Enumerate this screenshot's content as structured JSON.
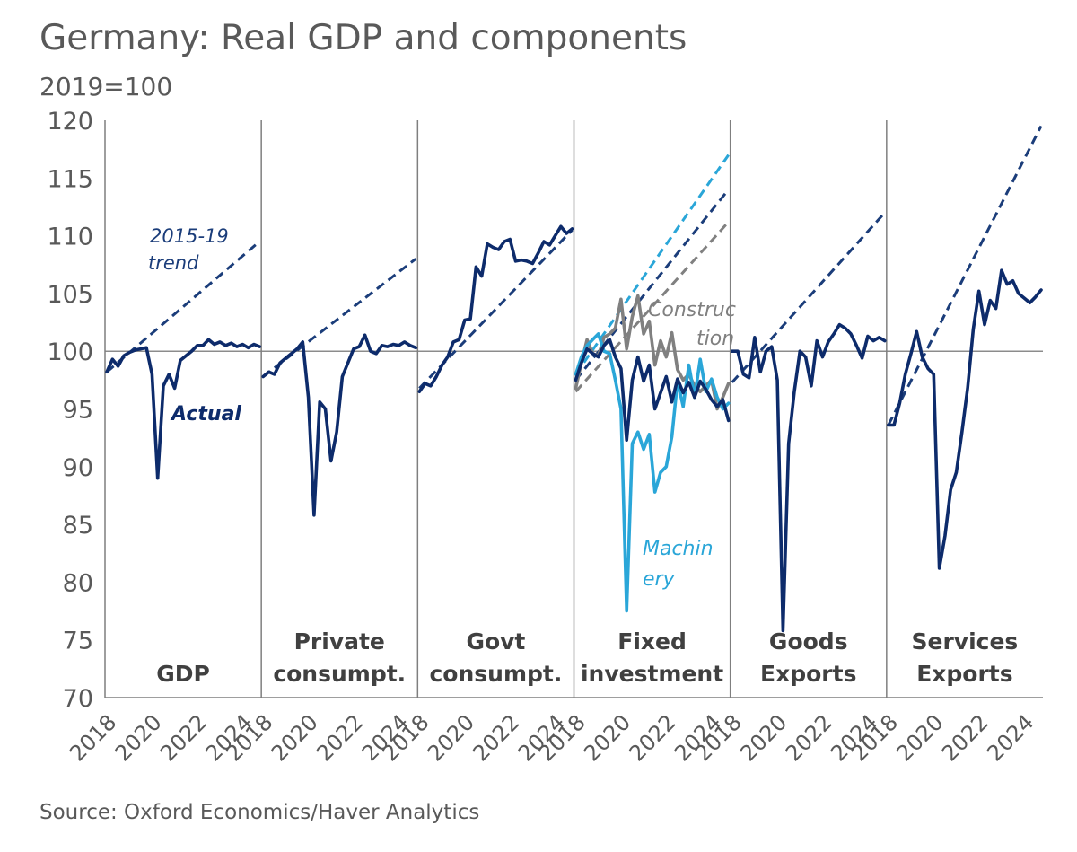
{
  "title": "Germany: Real GDP and components",
  "subtitle": "2019=100",
  "source": "Source: Oxford Economics/Haver Analytics",
  "chart_data": {
    "type": "line",
    "ylim": [
      70,
      120
    ],
    "yticks": [
      70,
      75,
      80,
      85,
      90,
      95,
      100,
      105,
      110,
      115,
      120
    ],
    "xlim": [
      2018,
      2024.75
    ],
    "xticks": [
      2018,
      2020,
      2022,
      2024
    ],
    "reference_line": 100,
    "colors": {
      "actual": "#0d2b6b",
      "trend": "#1b3d7a",
      "machinery": "#2aa6d8",
      "construction": "#808080",
      "axis": "#808080"
    },
    "annotations": {
      "trend": [
        "2015-19",
        "trend"
      ],
      "actual": "Actual",
      "construction": [
        "Construc",
        "tion"
      ],
      "machinery": [
        "Machin",
        "ery"
      ]
    },
    "panels": [
      {
        "label": [
          "",
          "GDP"
        ],
        "series": [
          {
            "name": "Actual",
            "style": "solid",
            "color": "#0d2b6b",
            "x": [
              2018,
              2018.25,
              2018.5,
              2018.75,
              2019,
              2019.25,
              2019.5,
              2019.75,
              2020,
              2020.25,
              2020.5,
              2020.75,
              2021,
              2021.25,
              2021.5,
              2021.75,
              2022,
              2022.25,
              2022.5,
              2022.75,
              2023,
              2023.25,
              2023.5,
              2023.75,
              2024,
              2024.25,
              2024.5,
              2024.75
            ],
            "y": [
              98.2,
              99.3,
              98.7,
              99.6,
              99.9,
              100.1,
              100.2,
              100.3,
              98,
              89,
              97,
              98,
              96.8,
              99.2,
              99.6,
              100,
              100.5,
              100.5,
              101,
              100.6,
              100.8,
              100.5,
              100.7,
              100.4,
              100.6,
              100.3,
              100.6,
              100.4
            ]
          },
          {
            "name": "2015-19 trend",
            "style": "dashed",
            "color": "#1b3d7a",
            "x": [
              2018,
              2024.75
            ],
            "y": [
              98.2,
              109.5
            ]
          }
        ]
      },
      {
        "label": [
          "Private",
          "consumpt."
        ],
        "series": [
          {
            "name": "Actual",
            "style": "solid",
            "color": "#0d2b6b",
            "x": [
              2018,
              2018.25,
              2018.5,
              2018.75,
              2019,
              2019.25,
              2019.5,
              2019.75,
              2020,
              2020.25,
              2020.5,
              2020.75,
              2021,
              2021.25,
              2021.5,
              2021.75,
              2022,
              2022.25,
              2022.5,
              2022.75,
              2023,
              2023.25,
              2023.5,
              2023.75,
              2024,
              2024.25,
              2024.5,
              2024.75
            ],
            "y": [
              97.8,
              98.2,
              98,
              99,
              99.4,
              99.8,
              100.2,
              100.8,
              96,
              85.8,
              95.6,
              95,
              90.5,
              93,
              97.8,
              99,
              100.2,
              100.4,
              101.4,
              100,
              99.8,
              100.5,
              100.4,
              100.6,
              100.5,
              100.8,
              100.5,
              100.3
            ]
          },
          {
            "name": "2015-19 trend",
            "style": "dashed",
            "color": "#1b3d7a",
            "x": [
              2018,
              2024.75
            ],
            "y": [
              97.8,
              108
            ]
          }
        ]
      },
      {
        "label": [
          "Govt",
          "consumpt."
        ],
        "series": [
          {
            "name": "Actual",
            "style": "solid",
            "color": "#0d2b6b",
            "x": [
              2018,
              2018.25,
              2018.5,
              2018.75,
              2019,
              2019.25,
              2019.5,
              2019.75,
              2020,
              2020.25,
              2020.5,
              2020.75,
              2021,
              2021.25,
              2021.5,
              2021.75,
              2022,
              2022.25,
              2022.5,
              2022.75,
              2023,
              2023.25,
              2023.5,
              2023.75,
              2024,
              2024.25,
              2024.5,
              2024.75
            ],
            "y": [
              96.5,
              97.2,
              97,
              97.8,
              98.8,
              99.5,
              100.8,
              101,
              102.7,
              102.8,
              107.3,
              106.5,
              109.3,
              109,
              108.8,
              109.5,
              109.7,
              107.8,
              107.9,
              107.8,
              107.6,
              108.5,
              109.5,
              109.2,
              110,
              110.8,
              110.2,
              110.6
            ]
          },
          {
            "name": "2015-19 trend",
            "style": "dashed",
            "color": "#1b3d7a",
            "x": [
              2018,
              2024.75
            ],
            "y": [
              96.8,
              110.5
            ]
          }
        ]
      },
      {
        "label": [
          "Fixed",
          "investment"
        ],
        "series": [
          {
            "name": "Construction",
            "style": "solid",
            "color": "#808080",
            "x": [
              2018,
              2018.25,
              2018.5,
              2018.75,
              2019,
              2019.25,
              2019.5,
              2019.75,
              2020,
              2020.25,
              2020.5,
              2020.75,
              2021,
              2021.25,
              2021.5,
              2021.75,
              2022,
              2022.25,
              2022.5,
              2022.75,
              2023,
              2023.25,
              2023.5,
              2023.75,
              2024,
              2024.25,
              2024.5,
              2024.75
            ],
            "y": [
              96.8,
              99,
              101,
              99.8,
              99.6,
              101.2,
              101.5,
              102,
              104.5,
              100.2,
              103,
              104.8,
              101.5,
              102.6,
              98.8,
              100.9,
              99.5,
              101.6,
              98.4,
              97.5,
              98,
              97,
              96.5,
              97,
              97.5,
              95,
              96,
              97.2
            ]
          },
          {
            "name": "Machinery",
            "style": "solid",
            "color": "#2aa6d8",
            "x": [
              2018,
              2018.25,
              2018.5,
              2018.75,
              2019,
              2019.25,
              2019.5,
              2019.75,
              2020,
              2020.25,
              2020.5,
              2020.75,
              2021,
              2021.25,
              2021.5,
              2021.75,
              2022,
              2022.25,
              2022.5,
              2022.75,
              2023,
              2023.25,
              2023.5,
              2023.75,
              2024,
              2024.25,
              2024.5,
              2024.75
            ],
            "y": [
              98,
              99.5,
              100.5,
              101,
              101.5,
              100,
              99.8,
              97.5,
              95,
              77.5,
              92,
              93,
              91.5,
              92.8,
              87.8,
              89.5,
              90,
              92.6,
              97.4,
              95.2,
              98.8,
              96,
              99.3,
              96.5,
              97.6,
              96,
              95,
              95.5
            ]
          },
          {
            "name": "Fixed investment",
            "style": "solid",
            "color": "#0d2b6b",
            "x": [
              2018,
              2018.25,
              2018.5,
              2018.75,
              2019,
              2019.25,
              2019.5,
              2019.75,
              2020,
              2020.25,
              2020.5,
              2020.75,
              2021,
              2021.25,
              2021.5,
              2021.75,
              2022,
              2022.25,
              2022.5,
              2022.75,
              2023,
              2023.25,
              2023.5,
              2023.75,
              2024,
              2024.25,
              2024.5,
              2024.75
            ],
            "y": [
              97.5,
              99,
              100.2,
              99.8,
              99.5,
              100.5,
              101,
              99.5,
              98.5,
              92.3,
              97.5,
              99.5,
              97.4,
              98.8,
              95,
              96.4,
              97.8,
              95.6,
              97.6,
              96.4,
              97.3,
              96,
              97.4,
              96.7,
              95.8,
              95.2,
              95.8,
              94
            ]
          },
          {
            "name": "Machinery trend",
            "style": "dashed",
            "color": "#2aa6d8",
            "x": [
              2018,
              2024.75
            ],
            "y": [
              98,
              117
            ]
          },
          {
            "name": "Fixed investment trend",
            "style": "dashed",
            "color": "#1b3d7a",
            "x": [
              2018,
              2024.75
            ],
            "y": [
              97.5,
              114
            ]
          },
          {
            "name": "Construction trend",
            "style": "dashed",
            "color": "#808080",
            "x": [
              2018,
              2024.75
            ],
            "y": [
              96.5,
              111.2
            ]
          }
        ]
      },
      {
        "label": [
          "Goods",
          "Exports"
        ],
        "series": [
          {
            "name": "Actual",
            "style": "solid",
            "color": "#0d2b6b",
            "x": [
              2018,
              2018.25,
              2018.5,
              2018.75,
              2019,
              2019.25,
              2019.5,
              2019.75,
              2020,
              2020.25,
              2020.5,
              2020.75,
              2021,
              2021.25,
              2021.5,
              2021.75,
              2022,
              2022.25,
              2022.5,
              2022.75,
              2023,
              2023.25,
              2023.5,
              2023.75,
              2024,
              2024.25,
              2024.5,
              2024.75
            ],
            "y": [
              100,
              100,
              98,
              97.7,
              101.2,
              98.2,
              100,
              100.4,
              97.5,
              75.8,
              92,
              96.5,
              100,
              99.5,
              97,
              100.9,
              99.5,
              100.8,
              101.5,
              102.3,
              102,
              101.5,
              100.5,
              99.4,
              101.3,
              100.9,
              101.2,
              100.9
            ]
          },
          {
            "name": "2015-19 trend",
            "style": "dashed",
            "color": "#1b3d7a",
            "x": [
              2018,
              2024.75
            ],
            "y": [
              97.3,
              112
            ]
          }
        ]
      },
      {
        "label": [
          "Services",
          "Exports"
        ],
        "series": [
          {
            "name": "Actual",
            "style": "solid",
            "color": "#0d2b6b",
            "x": [
              2018,
              2018.25,
              2018.5,
              2018.75,
              2019,
              2019.25,
              2019.5,
              2019.75,
              2020,
              2020.25,
              2020.5,
              2020.75,
              2021,
              2021.25,
              2021.5,
              2021.75,
              2022,
              2022.25,
              2022.5,
              2022.75,
              2023,
              2023.25,
              2023.5,
              2023.75,
              2024,
              2024.25,
              2024.5,
              2024.75
            ],
            "y": [
              93.6,
              93.6,
              95.5,
              98,
              99.8,
              101.7,
              99.5,
              98.5,
              98,
              81.2,
              84,
              88,
              89.5,
              93,
              96.8,
              101.9,
              105.2,
              102.3,
              104.4,
              103.7,
              107,
              105.8,
              106.1,
              105,
              104.6,
              104.2,
              104.7,
              105.3
            ]
          },
          {
            "name": "2015-19 trend",
            "style": "dashed",
            "color": "#1b3d7a",
            "x": [
              2018,
              2024.75
            ],
            "y": [
              93.6,
              119.5
            ]
          }
        ]
      }
    ]
  }
}
